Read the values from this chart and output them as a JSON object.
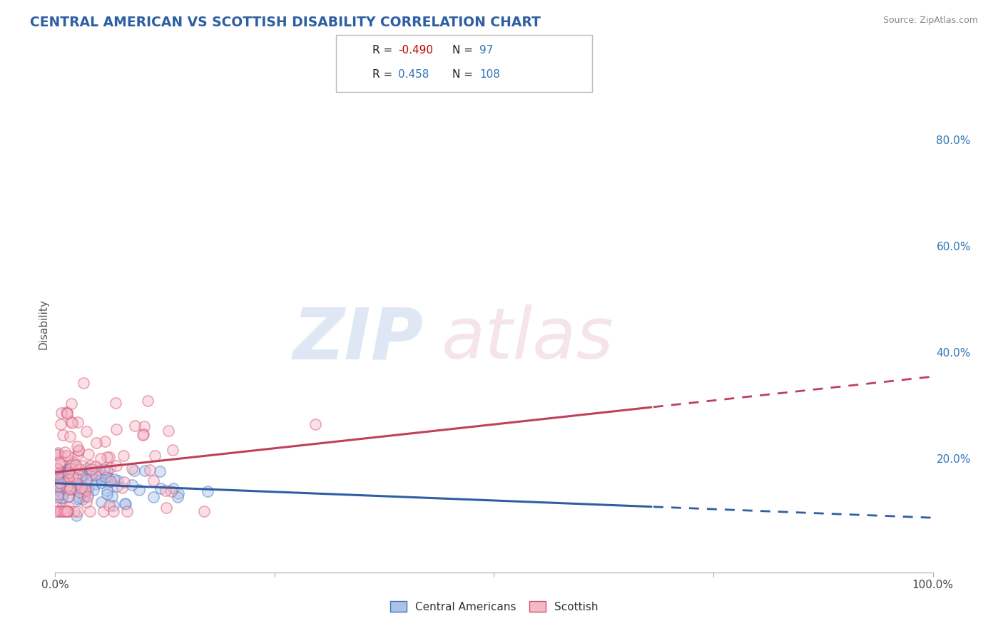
{
  "title": "CENTRAL AMERICAN VS SCOTTISH DISABILITY CORRELATION CHART",
  "source": "Source: ZipAtlas.com",
  "ylabel": "Disability",
  "xlim": [
    0.0,
    1.0
  ],
  "ylim": [
    -0.015,
    0.92
  ],
  "ytick_positions": [
    0.0,
    0.2,
    0.4,
    0.6,
    0.8
  ],
  "ytick_labels_right": [
    "",
    "20.0%",
    "40.0%",
    "60.0%",
    "80.0%"
  ],
  "xtick_positions": [
    0.0,
    0.25,
    0.5,
    0.75,
    1.0
  ],
  "xtick_labels": [
    "0.0%",
    "",
    "",
    "",
    "100.0%"
  ],
  "blue_R": -0.49,
  "blue_N": 97,
  "pink_R": 0.458,
  "pink_N": 108,
  "blue_scatter_face": "#aac4e8",
  "blue_scatter_edge": "#4472c4",
  "pink_scatter_face": "#f5b8c8",
  "pink_scatter_edge": "#d45070",
  "blue_trend_color": "#2e5fa3",
  "pink_trend_color": "#c0405a",
  "title_color": "#2e5fa3",
  "source_color": "#888888",
  "right_axis_color": "#2e75b6",
  "grid_color": "#c8c8c8",
  "bg_color": "#ffffff",
  "legend_r_neg_color": "#c00000",
  "legend_r_pos_color": "#2e75b6",
  "legend_n_color": "#2e75b6",
  "trend_solid_end": 0.68,
  "scatter_size": 120,
  "scatter_alpha": 0.45,
  "scatter_edge_width": 1.2
}
